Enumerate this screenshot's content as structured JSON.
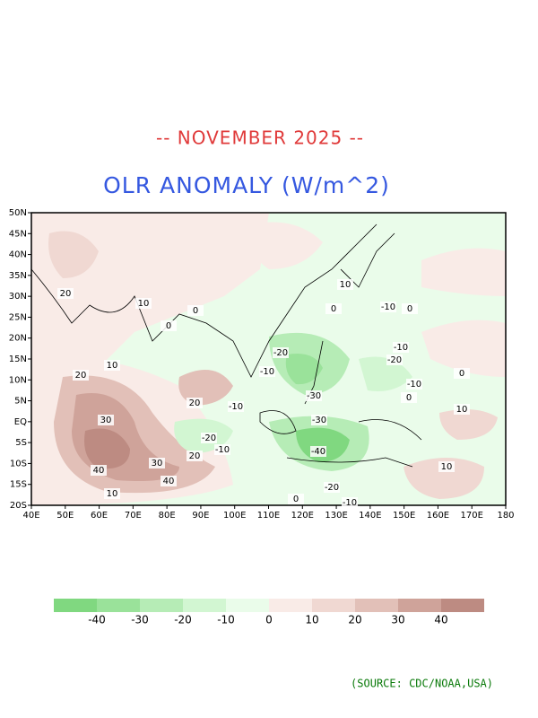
{
  "header": {
    "title": "-- NOVEMBER 2025 --",
    "subtitle": "OLR ANOMALY (W/m^2)"
  },
  "map": {
    "lat_labels": [
      "50N",
      "45N",
      "40N",
      "35N",
      "30N",
      "25N",
      "20N",
      "15N",
      "10N",
      "5N",
      "EQ",
      "5S",
      "10S",
      "15S",
      "20S"
    ],
    "lon_labels": [
      "40E",
      "50E",
      "60E",
      "70E",
      "80E",
      "90E",
      "100E",
      "110E",
      "120E",
      "130E",
      "140E",
      "150E",
      "160E",
      "170E",
      "180"
    ],
    "contour_labels": [
      20,
      10,
      0,
      0,
      20,
      10,
      30,
      40,
      30,
      40,
      20,
      10,
      20,
      -20,
      -10,
      -10,
      -20,
      -10,
      -30,
      -30,
      -40,
      -20,
      -10,
      0,
      0,
      -10,
      -10,
      -20,
      -10,
      0,
      10,
      10,
      10,
      0,
      0
    ]
  },
  "colorbar": {
    "labels": [
      -40,
      -30,
      -20,
      -10,
      0,
      10,
      20,
      30,
      40
    ],
    "colors": [
      "#80d880",
      "#9ae29a",
      "#b6ecb6",
      "#d2f6d2",
      "#eafcea",
      "#f9ebe7",
      "#f0d8d2",
      "#e2c0b8",
      "#cfa39a",
      "#bd8b82"
    ]
  },
  "source": "(SOURCE: CDC/NOAA,USA)"
}
